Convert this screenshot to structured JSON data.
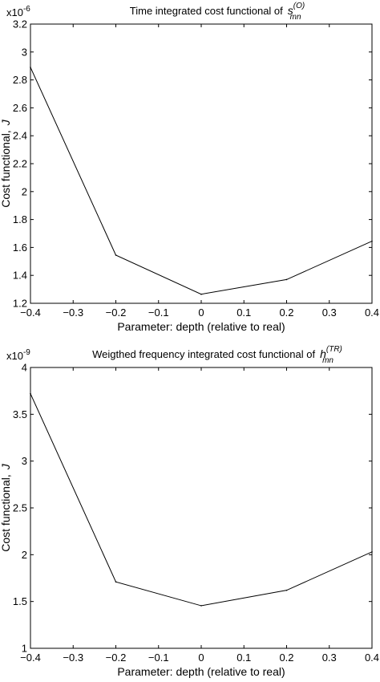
{
  "chart_data": [
    {
      "type": "line",
      "title_prefix": "Time integrated cost functional of",
      "title_symbol": "s",
      "title_subscript": "mn",
      "title_superscript": "(O)",
      "exponent_label": "x10",
      "exponent_value": "-6",
      "xlabel": "Parameter: depth (relative to real)",
      "ylabel_text": "Cost functional,",
      "ylabel_symbol": "J",
      "xlim": [
        -0.4,
        0.4
      ],
      "ylim": [
        1.2,
        3.2
      ],
      "xticks": [
        -0.4,
        -0.3,
        -0.2,
        -0.1,
        0,
        0.1,
        0.2,
        0.3,
        0.4
      ],
      "xtick_labels": [
        "−0.4",
        "−0.3",
        "−0.2",
        "−0.1",
        "0",
        "0.1",
        "0.2",
        "0.3",
        "0.4"
      ],
      "yticks": [
        1.2,
        1.4,
        1.6,
        1.8,
        2,
        2.2,
        2.4,
        2.6,
        2.8,
        3,
        3.2
      ],
      "ytick_labels": [
        "1.2",
        "1.4",
        "1.6",
        "1.8",
        "2",
        "2.2",
        "2.4",
        "2.6",
        "2.8",
        "3",
        "3.2"
      ],
      "grid": false,
      "x": [
        -0.4,
        -0.2,
        0,
        0.2,
        0.4
      ],
      "y": [
        2.89,
        1.545,
        1.265,
        1.37,
        1.645
      ]
    },
    {
      "type": "line",
      "title_prefix": "Weigthed frequency integrated cost functional of",
      "title_symbol": "h",
      "title_subscript": "mn",
      "title_superscript": "(TR)",
      "exponent_label": "x10",
      "exponent_value": "-9",
      "xlabel": "Parameter: depth (relative to real)",
      "ylabel_text": "Cost functional,",
      "ylabel_symbol": "J",
      "xlim": [
        -0.4,
        0.4
      ],
      "ylim": [
        1,
        4
      ],
      "xticks": [
        -0.4,
        -0.3,
        -0.2,
        -0.1,
        0,
        0.1,
        0.2,
        0.3,
        0.4
      ],
      "xtick_labels": [
        "−0.4",
        "−0.3",
        "−0.2",
        "−0.1",
        "0",
        "0.1",
        "0.2",
        "0.3",
        "0.4"
      ],
      "yticks": [
        1,
        1.5,
        2,
        2.5,
        3,
        3.5,
        4
      ],
      "ytick_labels": [
        "1",
        "1.5",
        "2",
        "2.5",
        "3",
        "3.5",
        "4"
      ],
      "grid": false,
      "x": [
        -0.4,
        -0.2,
        0,
        0.2,
        0.4
      ],
      "y": [
        3.72,
        1.71,
        1.455,
        1.62,
        2.03
      ]
    }
  ]
}
